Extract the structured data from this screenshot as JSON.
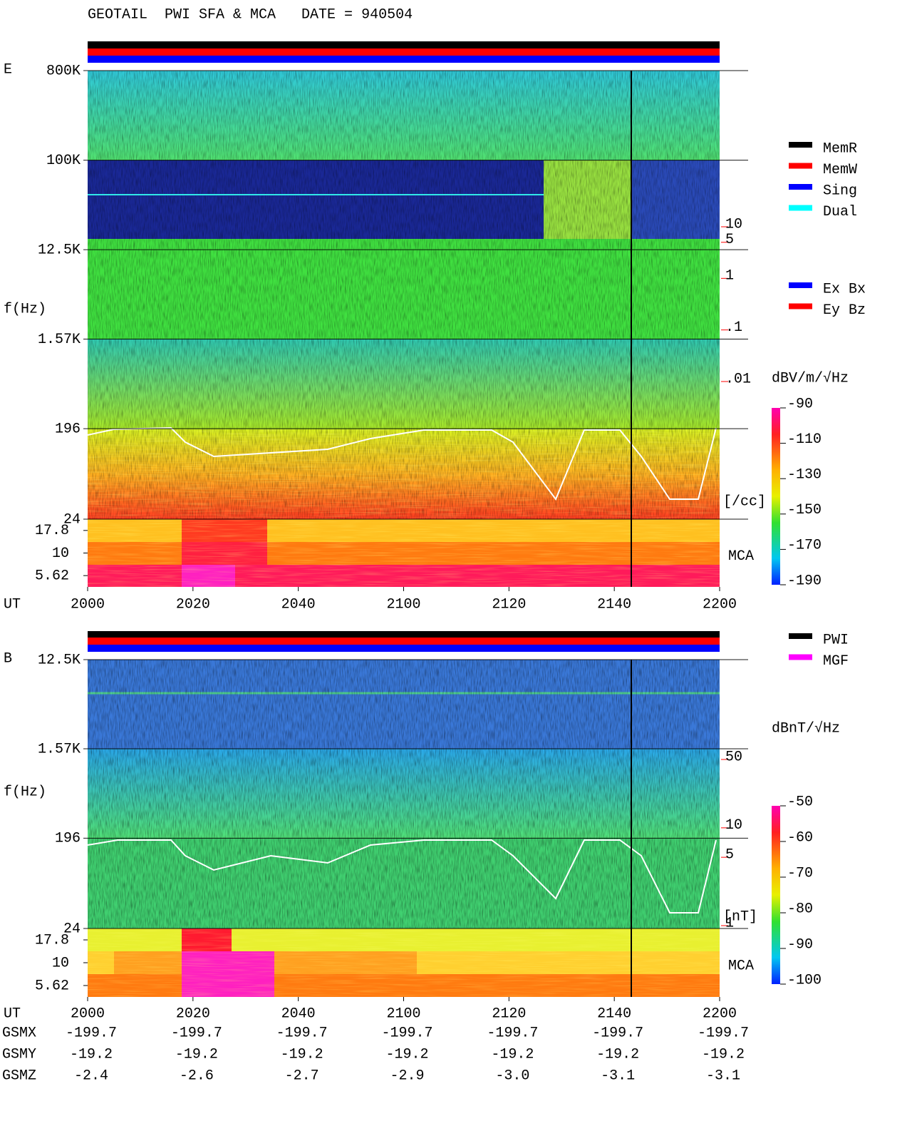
{
  "chart_data": [
    {
      "type": "spectrogram",
      "title": "GEOTAIL  PWI SFA & MCA   DATE = 940504",
      "panel": "E",
      "y_label": "f(Hz)",
      "x_label": "UT",
      "categories": [
        "2000",
        "2020",
        "2040",
        "2100",
        "2120",
        "2140",
        "2200"
      ],
      "yscale": "log",
      "ylim": [
        24,
        800000
      ],
      "yticks": [
        {
          "value": 800000,
          "label": "800K"
        },
        {
          "value": 100000,
          "label": "100K"
        },
        {
          "value": 12500,
          "label": "12.5K"
        },
        {
          "value": 1570,
          "label": "1.57K"
        },
        196,
        24
      ],
      "mca_label": "MCA",
      "mca_ticks": [
        17.8,
        10,
        5.62
      ],
      "y2scale": "log",
      "y2lim": [
        0.01,
        10
      ],
      "y2ticks": [
        10,
        5,
        1,
        {
          "value": 0.1,
          "label": ".1"
        },
        {
          "value": 0.01,
          "label": ".01"
        }
      ],
      "y2_label": "[/cc]",
      "y2_color": "#ff0000",
      "colorbar_label": "dBV/m/√Hz",
      "clim": [
        -190,
        -90
      ],
      "cticks": [
        -90,
        -110,
        -130,
        -150,
        -170,
        -190
      ],
      "legend": [
        {
          "name": "MemR",
          "color": "#000000"
        },
        {
          "name": "MemW",
          "color": "#ff0000"
        },
        {
          "name": "Sing",
          "color": "#0000ff"
        },
        {
          "name": "Dual",
          "color": "#00ffff"
        }
      ],
      "legend2": [
        {
          "name": "Ex Bx",
          "color": "#0000ff"
        },
        {
          "name": "Ey Bz",
          "color": "#ff0000"
        }
      ]
    },
    {
      "type": "spectrogram",
      "panel": "B",
      "y_label": "f(Hz)",
      "x_label": "UT",
      "categories": [
        "2000",
        "2020",
        "2040",
        "2100",
        "2120",
        "2140",
        "2200"
      ],
      "yscale": "log",
      "ylim": [
        24,
        12500
      ],
      "yticks": [
        {
          "value": 12500,
          "label": "12.5K"
        },
        {
          "value": 1570,
          "label": "1.57K"
        },
        196,
        24
      ],
      "mca_label": "MCA",
      "mca_ticks": [
        17.8,
        10,
        5.62
      ],
      "y2scale": "log",
      "y2lim": [
        1,
        50
      ],
      "y2ticks": [
        50,
        10,
        5,
        1
      ],
      "y2_label": "[nT]",
      "y2_color": "#ff0000",
      "colorbar_label": "dBnT/√Hz",
      "clim": [
        -100,
        -50
      ],
      "cticks": [
        -50,
        -60,
        -70,
        -80,
        -90,
        -100
      ],
      "legend": [
        {
          "name": "PWI",
          "color": "#000000"
        },
        {
          "name": "MGF",
          "color": "#ff00ff"
        }
      ]
    }
  ],
  "orbit": {
    "rows": [
      {
        "label": "GSMX",
        "values": [
          "-199.7",
          "-199.7",
          "-199.7",
          "-199.7",
          "-199.7",
          "-199.7",
          "-199.7"
        ]
      },
      {
        "label": "GSMY",
        "values": [
          "-19.2",
          "-19.2",
          "-19.2",
          "-19.2",
          "-19.2",
          "-19.2",
          "-19.2"
        ]
      },
      {
        "label": "GSMZ",
        "values": [
          "-2.4",
          "-2.6",
          "-2.7",
          "-2.9",
          "-3.0",
          "-3.1",
          "-3.1"
        ]
      }
    ]
  }
}
